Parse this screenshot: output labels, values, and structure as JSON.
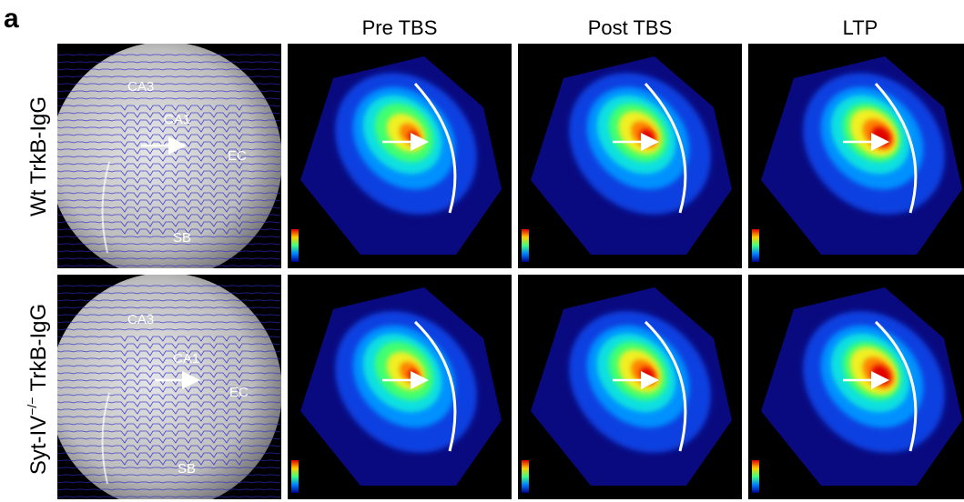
{
  "panel_label": "a",
  "columns": [
    "Pre TBS",
    "Post TBS",
    "LTP"
  ],
  "rows": [
    {
      "label": {
        "prefix": "Wt TrkB-IgG"
      },
      "regions": [
        "CA3",
        "CA1",
        "EC",
        "SB"
      ]
    },
    {
      "label": {
        "prefix": "Syt-IV",
        "superscript": "−/−",
        "suffix": " TrkB-IgG"
      },
      "regions": [
        "CA3",
        "CA1",
        "EC",
        "SB"
      ]
    }
  ]
}
